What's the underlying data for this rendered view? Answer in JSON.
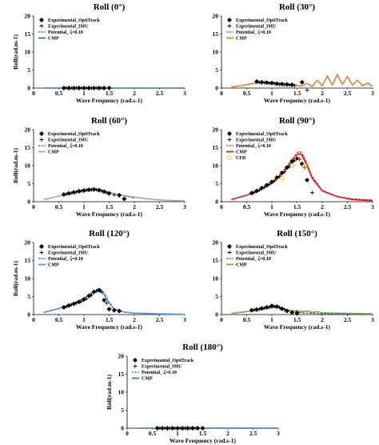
{
  "colors": {
    "cmp_blue": "#2e75b6",
    "cmp_orange": "#e5803a",
    "cmp_gray": "#a6a6a6",
    "cmp_red": "#e0201f",
    "cmp_light_blue": "#5b9bd5",
    "cmp_green": "#70ad47",
    "potential_dash": "#1f3864",
    "potential_dash_red": "#c00000",
    "cfd": "#f2c230",
    "marker": "#000000"
  },
  "chart_data": [
    {
      "type": "line",
      "title": "Roll (0°)",
      "xlabel": "Wave Frequency (rad.s-1)",
      "ylabel": "Roll(rad.m-1)",
      "xlim": [
        0,
        3
      ],
      "ylim": [
        0,
        20
      ],
      "xticks": [
        "0",
        "0.5",
        "1",
        "1.5",
        "2",
        "2.5",
        "3"
      ],
      "yticks": [
        "0",
        "5",
        "10",
        "15",
        "20"
      ],
      "legend": [
        "Experimental_OptiTrack",
        "Experimental_IMU",
        "Potential_ ζ=0.10",
        "CMP"
      ],
      "legend_position": "top-left",
      "series": [
        {
          "name": "Experimental_OptiTrack",
          "kind": "diamond",
          "x": [
            0.6,
            0.7,
            0.8,
            0.9,
            1.0,
            1.1,
            1.2,
            1.3,
            1.4,
            1.5
          ],
          "y": [
            0,
            0,
            0,
            0,
            0,
            0,
            0,
            0,
            0,
            0
          ]
        },
        {
          "name": "Experimental_IMU",
          "kind": "plus",
          "x": [
            0.65,
            0.75,
            0.85,
            0.95,
            1.05,
            1.15,
            1.25,
            1.35
          ],
          "y": [
            0,
            0,
            0,
            0,
            0,
            0,
            0,
            0
          ]
        },
        {
          "name": "Potential_ ζ=0.10",
          "kind": "dash",
          "color": "potential_dash",
          "x": [
            0.2,
            3.0
          ],
          "y": [
            0,
            0
          ]
        },
        {
          "name": "CMP",
          "kind": "line",
          "color": "cmp_blue",
          "x": [
            0.2,
            3.0
          ],
          "y": [
            0,
            0
          ]
        }
      ]
    },
    {
      "type": "line",
      "title": "Roll (30°)",
      "xlabel": "Wave Frequency (rad.s-1)",
      "ylabel": "",
      "xlim": [
        0,
        3
      ],
      "ylim": [
        0,
        20
      ],
      "xticks": [
        "0",
        "0.5",
        "1",
        "1.5",
        "2",
        "2.5",
        "3"
      ],
      "yticks": [
        "0",
        "5",
        "10",
        "15",
        "20"
      ],
      "legend": [
        "Experimental_OptiTrack",
        "Experimental_IMU",
        "Potential_ ζ=0.10",
        "CMP"
      ],
      "legend_position": "top-left",
      "series": [
        {
          "name": "Experimental_OptiTrack",
          "kind": "diamond",
          "x": [
            0.7,
            0.8,
            0.9,
            1.0,
            1.1,
            1.2,
            1.3,
            1.4,
            1.6
          ],
          "y": [
            1.8,
            1.6,
            1.5,
            1.4,
            1.2,
            1.1,
            1.0,
            0.9,
            1.6
          ]
        },
        {
          "name": "Experimental_IMU",
          "kind": "plus",
          "x": [
            0.75,
            0.85,
            0.95,
            1.05,
            1.15,
            1.25,
            1.35,
            1.45,
            1.7
          ],
          "y": [
            1.6,
            1.5,
            1.3,
            1.2,
            1.0,
            0.9,
            0.8,
            0.7,
            -0.6
          ]
        },
        {
          "name": "Potential_ ζ=0.10",
          "kind": "dash",
          "color": "potential_dash_red",
          "x": [
            0.2,
            0.4,
            0.6,
            0.8,
            1.0,
            1.2,
            1.4,
            1.6
          ],
          "y": [
            0.3,
            0.7,
            1.2,
            1.6,
            1.6,
            1.3,
            0.9,
            0.5
          ]
        },
        {
          "name": "CMP",
          "kind": "line",
          "color": "cmp_orange",
          "x": [
            0.2,
            0.4,
            0.6,
            0.8,
            1.0,
            1.2,
            1.4,
            1.6,
            1.7,
            1.8,
            1.9,
            2.0,
            2.1,
            2.2,
            2.3,
            2.4,
            2.5,
            2.6,
            2.7,
            2.8,
            2.9,
            3.0
          ],
          "y": [
            0.3,
            0.7,
            1.2,
            1.6,
            1.6,
            1.3,
            0.9,
            0.6,
            1.3,
            0.4,
            2.2,
            0.6,
            3.4,
            0.8,
            3.8,
            1.0,
            3.2,
            0.8,
            2.2,
            0.6,
            1.4,
            0.5
          ]
        }
      ]
    },
    {
      "type": "line",
      "title": "Roll (60°)",
      "xlabel": "Wave Frequency (rad.s-1)",
      "ylabel": "Roll(rad.m-1)",
      "xlim": [
        0,
        3
      ],
      "ylim": [
        0,
        20
      ],
      "xticks": [
        "0",
        "0.5",
        "1",
        "1.5",
        "2",
        "2.5",
        "3"
      ],
      "yticks": [
        "0",
        "5",
        "10",
        "15",
        "20"
      ],
      "legend": [
        "Experimental_OptiTrack",
        "Experimental_IMU",
        "Potential_ ζ=0.10",
        "CMP"
      ],
      "legend_position": "top-left",
      "series": [
        {
          "name": "Experimental_OptiTrack",
          "kind": "diamond",
          "x": [
            0.6,
            0.7,
            0.8,
            0.9,
            1.0,
            1.1,
            1.2,
            1.3,
            1.4,
            1.5,
            1.7,
            1.8
          ],
          "y": [
            2.0,
            2.3,
            2.6,
            2.9,
            3.1,
            3.3,
            3.4,
            3.2,
            2.8,
            2.3,
            1.8,
            0.8
          ]
        },
        {
          "name": "Experimental_IMU",
          "kind": "plus",
          "x": [
            0.65,
            0.75,
            0.85,
            0.95,
            1.05,
            1.15,
            1.25,
            1.35,
            1.45,
            1.6
          ],
          "y": [
            2.1,
            2.4,
            2.7,
            3.0,
            3.2,
            3.3,
            3.3,
            3.0,
            2.5,
            1.9
          ]
        },
        {
          "name": "Potential_ ζ=0.10",
          "kind": "dash",
          "color": "potential_dash",
          "x": [
            0.2,
            0.5,
            0.8,
            1.0,
            1.2,
            1.4,
            1.6,
            1.8,
            2.0
          ],
          "y": [
            0.6,
            1.5,
            2.5,
            3.0,
            3.2,
            2.9,
            2.3,
            1.6,
            1.0
          ]
        },
        {
          "name": "CMP",
          "kind": "line",
          "color": "cmp_gray",
          "x": [
            0.2,
            0.4,
            0.6,
            0.8,
            1.0,
            1.1,
            1.2,
            1.3,
            1.4,
            1.5,
            1.6,
            1.7,
            1.8,
            1.9,
            2.0,
            2.2,
            2.4,
            2.6,
            2.8,
            3.0
          ],
          "y": [
            0.6,
            1.2,
            1.9,
            2.6,
            3.2,
            3.5,
            3.6,
            3.4,
            3.0,
            2.6,
            2.2,
            1.9,
            1.7,
            1.5,
            1.3,
            0.9,
            0.6,
            0.4,
            0.3,
            0.2
          ]
        }
      ]
    },
    {
      "type": "line",
      "title": "Roll (90°)",
      "xlabel": "Wave Frequency (rad.s-1)",
      "ylabel": "",
      "xlim": [
        0,
        3
      ],
      "ylim": [
        0,
        20
      ],
      "xticks": [
        "0",
        "0.5",
        "1",
        "1.5",
        "2",
        "2.5",
        "3"
      ],
      "yticks": [
        "0",
        "5",
        "10",
        "15",
        "20"
      ],
      "legend": [
        "Experimental_OptiTrack",
        "Experimental_IMU",
        "Potential_ ζ=0.10",
        "CMP",
        "CFD"
      ],
      "legend_position": "top-left",
      "series": [
        {
          "name": "Experimental_OptiTrack",
          "kind": "diamond",
          "x": [
            0.6,
            0.7,
            0.8,
            0.9,
            1.0,
            1.1,
            1.2,
            1.3,
            1.4,
            1.5,
            1.6,
            1.7
          ],
          "y": [
            2.4,
            3.0,
            3.8,
            4.6,
            5.5,
            6.7,
            8.0,
            9.5,
            11.2,
            12.0,
            10.5,
            6.0
          ]
        },
        {
          "name": "Experimental_IMU",
          "kind": "plus",
          "x": [
            0.65,
            0.75,
            0.85,
            0.95,
            1.05,
            1.15,
            1.25,
            1.35,
            1.45,
            1.55,
            1.65,
            1.8
          ],
          "y": [
            2.6,
            3.2,
            4.0,
            4.9,
            5.8,
            7.0,
            8.3,
            9.8,
            11.4,
            11.8,
            9.5,
            2.5
          ]
        },
        {
          "name": "Potential_ ζ=0.10",
          "kind": "dash",
          "color": "potential_dash_red",
          "x": [
            0.2,
            0.5,
            0.8,
            1.0,
            1.2,
            1.4,
            1.5,
            1.55,
            1.6,
            1.7,
            1.8,
            2.0,
            2.3,
            2.6,
            3.0
          ],
          "y": [
            0.6,
            1.8,
            3.6,
            5.3,
            8.0,
            11.8,
            13.6,
            14.0,
            13.5,
            10.5,
            7.0,
            3.2,
            1.5,
            0.8,
            0.5
          ]
        },
        {
          "name": "CMP",
          "kind": "line",
          "color": "cmp_red",
          "x": [
            0.2,
            0.5,
            0.8,
            1.0,
            1.2,
            1.4,
            1.5,
            1.55,
            1.6,
            1.7,
            1.8,
            2.0,
            2.3,
            2.6,
            2.8,
            3.0
          ],
          "y": [
            0.6,
            1.8,
            3.5,
            5.1,
            7.6,
            11.2,
            13.0,
            13.4,
            12.8,
            10.0,
            6.5,
            3.0,
            1.4,
            0.6,
            0.4,
            0.3
          ]
        },
        {
          "name": "CFD",
          "kind": "circle",
          "color": "cfd",
          "x": [
            1.2,
            1.4,
            1.5,
            1.65
          ],
          "y": [
            6.5,
            10.0,
            12.0,
            10.0
          ]
        }
      ]
    },
    {
      "type": "line",
      "title": "Roll (120°)",
      "xlabel": "Wave Frequency (rad.s-1)",
      "ylabel": "Roll(rad.m-1)",
      "xlim": [
        0,
        3
      ],
      "ylim": [
        0,
        20
      ],
      "xticks": [
        "0",
        "0.5",
        "1",
        "1.5",
        "2",
        "2.5",
        "3"
      ],
      "yticks": [
        "0",
        "5",
        "10",
        "15",
        "20"
      ],
      "legend": [
        "Experimental_OptiTrack",
        "Experimental_IMU",
        "Potential_ ζ=0.10",
        "CMP"
      ],
      "legend_position": "top-left",
      "series": [
        {
          "name": "Experimental_OptiTrack",
          "kind": "diamond",
          "x": [
            0.6,
            0.7,
            0.8,
            0.9,
            1.0,
            1.1,
            1.2,
            1.3,
            1.4,
            1.5,
            1.6,
            1.7
          ],
          "y": [
            2.0,
            2.5,
            3.0,
            3.5,
            4.2,
            5.2,
            6.3,
            6.8,
            4.0,
            1.5,
            1.2,
            1.0
          ]
        },
        {
          "name": "Experimental_IMU",
          "kind": "plus",
          "x": [
            0.65,
            0.75,
            0.85,
            0.95,
            1.05,
            1.15,
            1.25,
            1.35,
            1.45
          ],
          "y": [
            2.2,
            2.7,
            3.2,
            3.7,
            4.4,
            5.4,
            6.6,
            6.4,
            3.2
          ]
        },
        {
          "name": "Potential_ ζ=0.10",
          "kind": "dash",
          "color": "potential_dash",
          "x": [
            0.2,
            0.5,
            0.8,
            1.0,
            1.2,
            1.3,
            1.4,
            1.5,
            1.6,
            1.8,
            2.0,
            2.5,
            3.0
          ],
          "y": [
            0.5,
            1.6,
            3.2,
            4.6,
            6.5,
            7.0,
            6.0,
            3.5,
            1.6,
            0.7,
            0.4,
            0.2,
            0.1
          ]
        },
        {
          "name": "CMP",
          "kind": "line",
          "color": "cmp_light_blue",
          "x": [
            0.2,
            0.5,
            0.8,
            1.0,
            1.2,
            1.3,
            1.4,
            1.5,
            1.6,
            1.8,
            2.0,
            2.5,
            3.0
          ],
          "y": [
            0.6,
            1.7,
            3.2,
            4.5,
            6.2,
            6.5,
            5.5,
            3.2,
            1.5,
            0.7,
            0.4,
            0.2,
            0.1
          ]
        }
      ]
    },
    {
      "type": "line",
      "title": "Roll (150°)",
      "xlabel": "Wave Frequency (rad.s-1)",
      "ylabel": "",
      "xlim": [
        0,
        3
      ],
      "ylim": [
        0,
        20
      ],
      "xticks": [
        "0",
        "0.5",
        "1",
        "1.5",
        "2",
        "2.5",
        "3"
      ],
      "yticks": [
        "0",
        "5",
        "10",
        "15",
        "20"
      ],
      "legend": [
        "Experimental_OptiTrack",
        "Experimental_IMU",
        "Potential_ ζ=0.10",
        "CMP"
      ],
      "legend_position": "top-left",
      "series": [
        {
          "name": "Experimental_OptiTrack",
          "kind": "diamond",
          "x": [
            0.6,
            0.7,
            0.8,
            0.9,
            1.0,
            1.1,
            1.2,
            1.3,
            1.4,
            1.5
          ],
          "y": [
            1.2,
            1.4,
            1.7,
            2.0,
            2.4,
            2.2,
            1.6,
            1.0,
            0.6,
            0.4
          ]
        },
        {
          "name": "Experimental_IMU",
          "kind": "plus",
          "x": [
            0.65,
            0.75,
            0.85,
            0.95,
            1.05,
            1.15,
            1.25
          ],
          "y": [
            1.3,
            1.5,
            1.8,
            2.1,
            2.3,
            2.0,
            1.4
          ]
        },
        {
          "name": "Potential_ ζ=0.10",
          "kind": "dash",
          "color": "potential_dash",
          "x": [
            0.2,
            0.6,
            1.0,
            1.1,
            1.2,
            1.4,
            1.6,
            2.0,
            3.0
          ],
          "y": [
            0.3,
            1.0,
            2.0,
            2.1,
            1.8,
            1.0,
            0.5,
            0.2,
            0.1
          ]
        },
        {
          "name": "CMP",
          "kind": "line",
          "color": "cmp_green",
          "x": [
            0.2,
            0.6,
            1.0,
            1.1,
            1.2,
            1.3,
            1.4,
            1.5,
            1.6,
            1.7,
            1.8,
            1.9,
            2.0,
            2.2,
            2.5,
            3.0
          ],
          "y": [
            0.3,
            1.0,
            1.9,
            2.0,
            1.7,
            1.2,
            0.9,
            1.1,
            0.8,
            1.0,
            0.6,
            0.8,
            0.5,
            0.4,
            0.3,
            0.2
          ]
        }
      ]
    },
    {
      "type": "line",
      "title": "Roll (180°)",
      "xlabel": "Wave Frequency (rad.s-1)",
      "ylabel": "Roll(rad.m-1)",
      "xlim": [
        0,
        3
      ],
      "ylim": [
        0,
        20
      ],
      "xticks": [
        "0",
        "0.5",
        "1",
        "1.5",
        "2",
        "2.5",
        "3"
      ],
      "yticks": [
        "0",
        "5",
        "10",
        "15",
        "20"
      ],
      "legend": [
        "Experimantal_OptiTrack",
        "Experimental_IMU",
        "Potential_ ζ=0.10",
        "CMP"
      ],
      "legend_position": "top-left",
      "series": [
        {
          "name": "Experimantal_OptiTrack",
          "kind": "diamond",
          "x": [
            0.6,
            0.7,
            0.8,
            0.9,
            1.0,
            1.1,
            1.2,
            1.3,
            1.4,
            1.5
          ],
          "y": [
            0,
            0,
            0,
            0,
            0,
            0,
            0,
            0,
            0,
            0
          ]
        },
        {
          "name": "Experimental_IMU",
          "kind": "plus",
          "x": [
            0.65,
            0.75,
            0.85,
            0.95,
            1.05,
            1.15,
            1.25,
            1.35
          ],
          "y": [
            0,
            0,
            0,
            0,
            0,
            0,
            0,
            0
          ]
        },
        {
          "name": "Potential_ ζ=0.10",
          "kind": "dash",
          "color": "potential_dash",
          "x": [
            0.2,
            3.0
          ],
          "y": [
            0,
            0
          ]
        },
        {
          "name": "CMP",
          "kind": "line",
          "color": "cmp_blue",
          "x": [
            0.2,
            3.0
          ],
          "y": [
            0,
            0
          ]
        }
      ]
    }
  ]
}
